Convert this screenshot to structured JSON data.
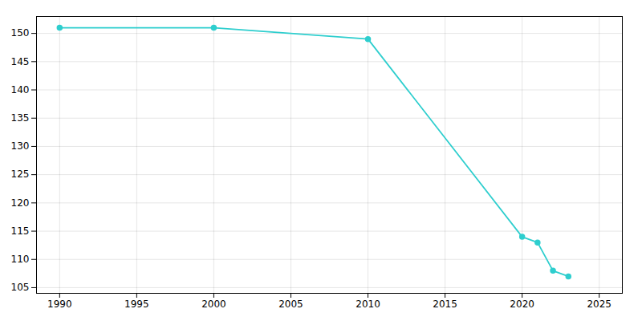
{
  "chart_data": {
    "type": "line",
    "x": [
      1990,
      2000,
      2010,
      2020,
      2021,
      2022,
      2023
    ],
    "values": [
      151,
      151,
      149,
      114,
      113,
      108,
      107
    ],
    "color": "#2ECECE",
    "marker": "circle",
    "xlim": [
      1988.5,
      2026.5
    ],
    "ylim": [
      104,
      153
    ],
    "xticks": [
      1990,
      1995,
      2000,
      2005,
      2010,
      2015,
      2020,
      2025
    ],
    "yticks": [
      105,
      110,
      115,
      120,
      125,
      130,
      135,
      140,
      145,
      150
    ],
    "grid": true
  }
}
